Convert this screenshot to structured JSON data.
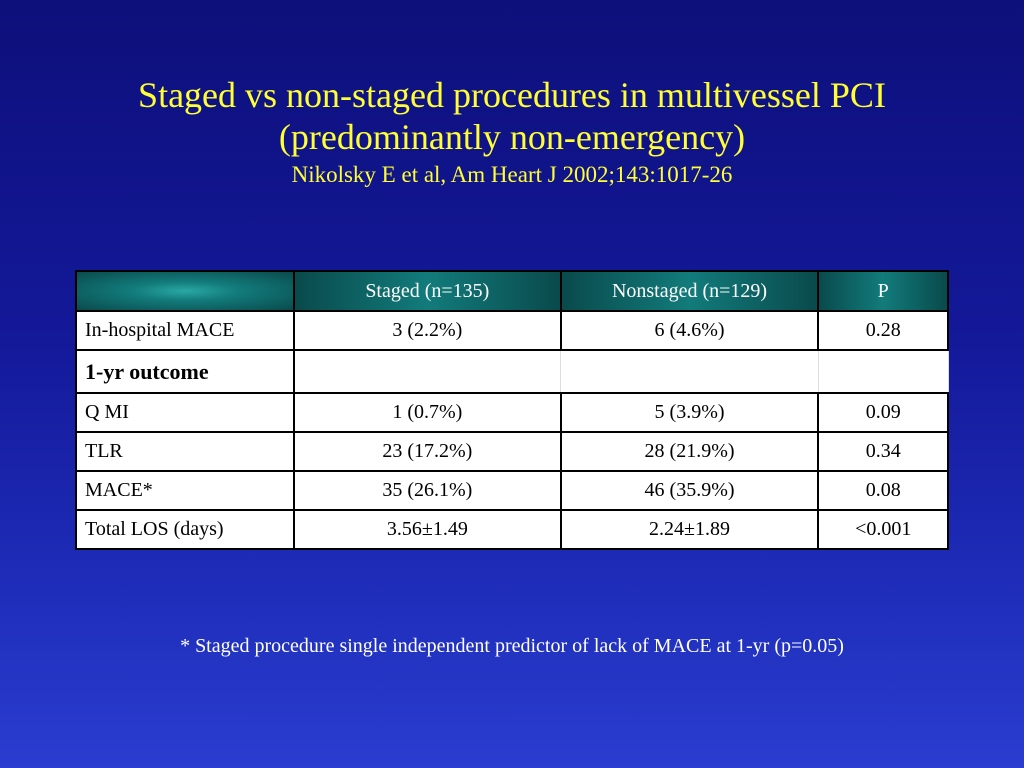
{
  "slide": {
    "title_line1": "Staged vs non-staged procedures in multivessel PCI",
    "title_line2": "(predominantly non-emergency)",
    "citation": "Nikolsky E et al, Am Heart J 2002;143:1017-26",
    "footnote": "* Staged procedure single independent predictor of lack of MACE at 1-yr (p=0.05)"
  },
  "table": {
    "headers": [
      "",
      "Staged (n=135)",
      "Nonstaged (n=129)",
      "P"
    ],
    "rows": [
      {
        "label": "In-hospital MACE",
        "staged": "3 (2.2%)",
        "nonstaged": "6 (4.6%)",
        "p": "0.28"
      },
      {
        "label": "1-yr outcome",
        "staged": "",
        "nonstaged": "",
        "p": ""
      },
      {
        "label": "Q MI",
        "staged": "1 (0.7%)",
        "nonstaged": "5 (3.9%)",
        "p": "0.09"
      },
      {
        "label": "TLR",
        "staged": "23 (17.2%)",
        "nonstaged": "28 (21.9%)",
        "p": "0.34"
      },
      {
        "label": "MACE*",
        "staged": "35 (26.1%)",
        "nonstaged": "46 (35.9%)",
        "p": "0.08"
      },
      {
        "label": "Total LOS (days)",
        "staged": "3.56±1.49",
        "nonstaged": "2.24±1.89",
        "p": "<0.001"
      }
    ]
  },
  "colors": {
    "title": "#ffff33",
    "background_top": "#0d0f7a",
    "background_bottom": "#2a3dd0",
    "header_fill": "#127b7b"
  }
}
